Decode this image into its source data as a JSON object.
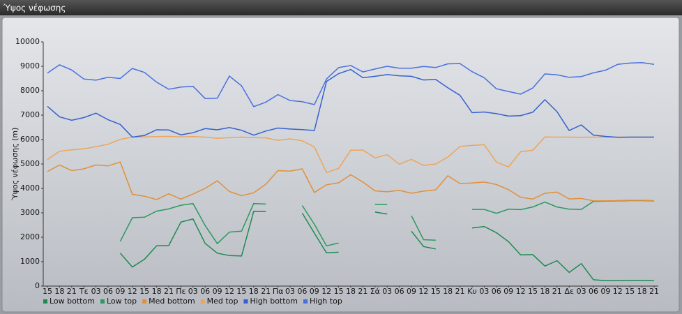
{
  "chart_data": {
    "type": "line",
    "title": "Ύψος νέφωσης",
    "y_label": "Ύψος νέφωσης (m)",
    "categories": [
      "15",
      "18",
      "21",
      "Τε",
      "03",
      "06",
      "09",
      "12",
      "15",
      "18",
      "21",
      "Πε",
      "03",
      "06",
      "09",
      "12",
      "15",
      "18",
      "21",
      "Πα",
      "03",
      "06",
      "09",
      "12",
      "15",
      "18",
      "21",
      "Σά",
      "03",
      "06",
      "09",
      "12",
      "15",
      "18",
      "21",
      "Κυ",
      "03",
      "06",
      "09",
      "12",
      "15",
      "18",
      "21",
      "Δε",
      "03",
      "06",
      "09",
      "12",
      "15",
      "18",
      "21"
    ],
    "ylim": [
      0,
      10000
    ],
    "yticks": [
      0,
      1000,
      2000,
      3000,
      4000,
      5000,
      6000,
      7000,
      8000,
      9000,
      10000
    ],
    "grid": false,
    "legend": "bottom",
    "series": [
      {
        "name": "Low bottom",
        "color": "#1e8a50",
        "values": [
          null,
          null,
          null,
          null,
          null,
          null,
          1350,
          780,
          1100,
          1650,
          1660,
          2620,
          2750,
          1750,
          1350,
          1250,
          1230,
          3060,
          3050,
          null,
          null,
          2990,
          2170,
          1360,
          1390,
          null,
          null,
          3030,
          2950,
          null,
          2250,
          1620,
          1520,
          null,
          null,
          2380,
          2440,
          2190,
          1820,
          1280,
          1290,
          820,
          1040,
          560,
          920,
          260,
          220,
          220,
          230,
          230,
          220
        ]
      },
      {
        "name": "Low top",
        "color": "#2a9a5e",
        "values": [
          null,
          null,
          null,
          null,
          null,
          null,
          1830,
          2800,
          2820,
          3070,
          3160,
          3310,
          3380,
          2480,
          1740,
          2210,
          2250,
          3380,
          3360,
          null,
          null,
          3300,
          2530,
          1650,
          1760,
          null,
          null,
          3350,
          3330,
          null,
          2880,
          1900,
          1880,
          null,
          null,
          3140,
          3140,
          2980,
          3150,
          3130,
          3240,
          3440,
          3240,
          3150,
          3140,
          3470,
          3480,
          3490,
          3500,
          3500,
          3490
        ]
      },
      {
        "name": "Med bottom",
        "color": "#e0903a",
        "values": [
          4690,
          4960,
          4730,
          4800,
          4960,
          4920,
          5080,
          3760,
          3680,
          3540,
          3780,
          3560,
          3770,
          4000,
          4310,
          3870,
          3700,
          3820,
          4170,
          4730,
          4710,
          4800,
          3830,
          4150,
          4230,
          4560,
          4260,
          3900,
          3860,
          3920,
          3800,
          3890,
          3940,
          4520,
          4200,
          4220,
          4260,
          4160,
          3950,
          3640,
          3560,
          3800,
          3850,
          3570,
          3590,
          3490,
          3490,
          3500,
          3510,
          3510,
          3500
        ]
      },
      {
        "name": "Med top",
        "color": "#eea45a",
        "values": [
          5180,
          5520,
          5580,
          5620,
          5710,
          5810,
          6010,
          6100,
          6110,
          6120,
          6130,
          6110,
          6120,
          6100,
          6050,
          6080,
          6100,
          6080,
          6070,
          5970,
          6030,
          5950,
          5700,
          4650,
          4820,
          5560,
          5570,
          5250,
          5380,
          4990,
          5190,
          4940,
          5000,
          5280,
          5720,
          5760,
          5790,
          5080,
          4880,
          5500,
          5560,
          6110,
          6100,
          6100,
          6090,
          6100,
          6100,
          6100,
          6100,
          6100,
          6100
        ]
      },
      {
        "name": "High bottom",
        "color": "#3560d0",
        "values": [
          7360,
          6930,
          6790,
          6900,
          7080,
          6810,
          6620,
          6100,
          6170,
          6400,
          6390,
          6190,
          6280,
          6450,
          6400,
          6490,
          6380,
          6180,
          6350,
          6470,
          6430,
          6410,
          6370,
          8380,
          8700,
          8870,
          8530,
          8590,
          8660,
          8610,
          8590,
          8440,
          8460,
          8120,
          7810,
          7100,
          7130,
          7060,
          6960,
          6980,
          7120,
          7630,
          7140,
          6370,
          6600,
          6180,
          6130,
          6090,
          6100,
          6100,
          6100
        ]
      },
      {
        "name": "High top",
        "color": "#4a70e0",
        "values": [
          8720,
          9060,
          8850,
          8480,
          8430,
          8550,
          8500,
          8910,
          8750,
          8350,
          8060,
          8150,
          8180,
          7680,
          7690,
          8600,
          8200,
          7350,
          7530,
          7840,
          7600,
          7550,
          7430,
          8480,
          8950,
          9030,
          8770,
          8890,
          9000,
          8920,
          8920,
          8990,
          8950,
          9100,
          9110,
          8780,
          8530,
          8080,
          7970,
          7860,
          8110,
          8690,
          8650,
          8550,
          8580,
          8730,
          8840,
          9080,
          9130,
          9150,
          9080
        ]
      }
    ]
  }
}
